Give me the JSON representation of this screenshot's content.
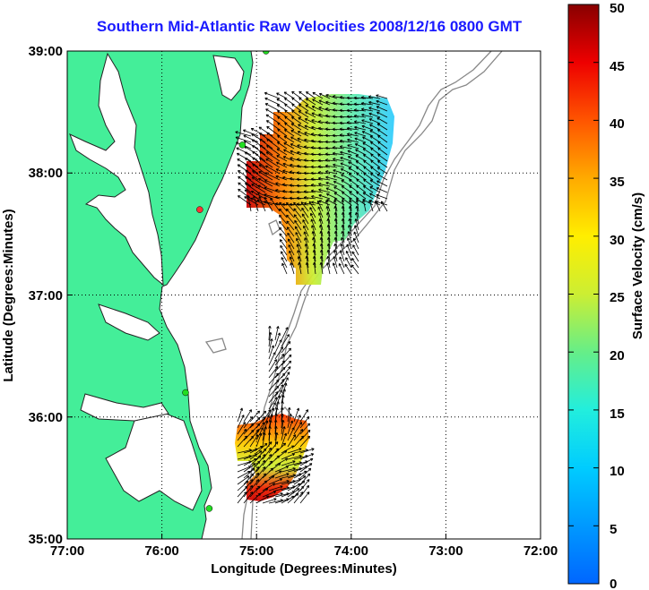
{
  "title": "Southern Mid-Atlantic Raw Velocities 2008/12/16 0800 GMT",
  "xlabel": "Longitude (Degrees:Minutes)",
  "ylabel": "Latitude (Degrees:Minutes)",
  "colorbar": {
    "label": "Surface Velocity (cm/s)",
    "ticks": [
      "0",
      "5",
      "10",
      "15",
      "20",
      "25",
      "30",
      "35",
      "40",
      "45",
      "50"
    ],
    "min": 0,
    "max": 50
  },
  "chart_data": {
    "type": "map",
    "grid": true,
    "xlim": [
      -77.0,
      -72.0
    ],
    "ylim": [
      35.0,
      39.0
    ],
    "x_ticks": [
      "77:00",
      "76:00",
      "75:00",
      "74:00",
      "73:00",
      "72:00"
    ],
    "y_ticks": [
      "35:00",
      "36:00",
      "37:00",
      "38:00",
      "39:00"
    ],
    "land_color": "#44ee99",
    "colormap": "jet",
    "stations": [
      {
        "lon": -74.9,
        "lat": 39.0,
        "color": "#22dd22"
      },
      {
        "lon": -75.15,
        "lat": 38.23,
        "color": "#22dd22"
      },
      {
        "lon": -75.6,
        "lat": 37.7,
        "color": "#ff3333"
      },
      {
        "lon": -75.75,
        "lat": 36.2,
        "color": "#22dd22"
      },
      {
        "lon": -75.5,
        "lat": 35.25,
        "color": "#22dd22"
      }
    ]
  }
}
